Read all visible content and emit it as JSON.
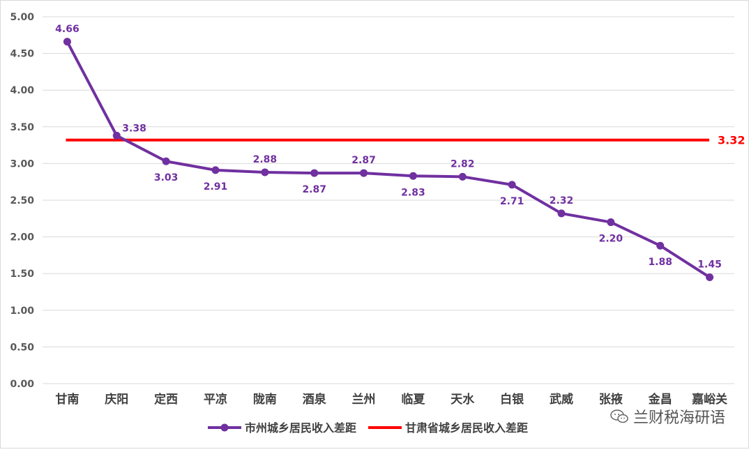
{
  "chart_data": {
    "type": "line",
    "categories": [
      "甘南",
      "庆阳",
      "定西",
      "平凉",
      "陇南",
      "酒泉",
      "兰州",
      "临夏",
      "天水",
      "白银",
      "武威",
      "张掖",
      "金昌",
      "嘉峪关"
    ],
    "series": [
      {
        "name": "市州城乡居民收入差距",
        "values": [
          4.66,
          3.38,
          3.03,
          2.91,
          2.88,
          2.87,
          2.87,
          2.83,
          2.82,
          2.71,
          2.32,
          2.2,
          1.88,
          1.45
        ],
        "labels": [
          "4.66",
          "3.38",
          "3.03",
          "2.91",
          "2.88",
          "2.87",
          "2.87",
          "2.83",
          "2.82",
          "2.71",
          "2.32",
          "2.20",
          "1.88",
          "1.45"
        ],
        "label_position": [
          "above",
          "above-right",
          "below",
          "below",
          "above",
          "below",
          "above",
          "below",
          "above",
          "below",
          "above",
          "below",
          "below",
          "above"
        ],
        "color": "#7030a0"
      },
      {
        "name": "甘肃省城乡居民收入差距",
        "value": 3.32,
        "label": "3.32",
        "color": "#ff0000"
      }
    ],
    "y_ticks": [
      "0.00",
      "0.50",
      "1.00",
      "1.50",
      "2.00",
      "2.50",
      "3.00",
      "3.50",
      "4.00",
      "4.50",
      "5.00"
    ],
    "ylim": [
      0,
      5
    ],
    "grid": true,
    "legend": "bottom",
    "title": "",
    "xlabel": "",
    "ylabel": ""
  },
  "watermark": "兰财税海研语"
}
